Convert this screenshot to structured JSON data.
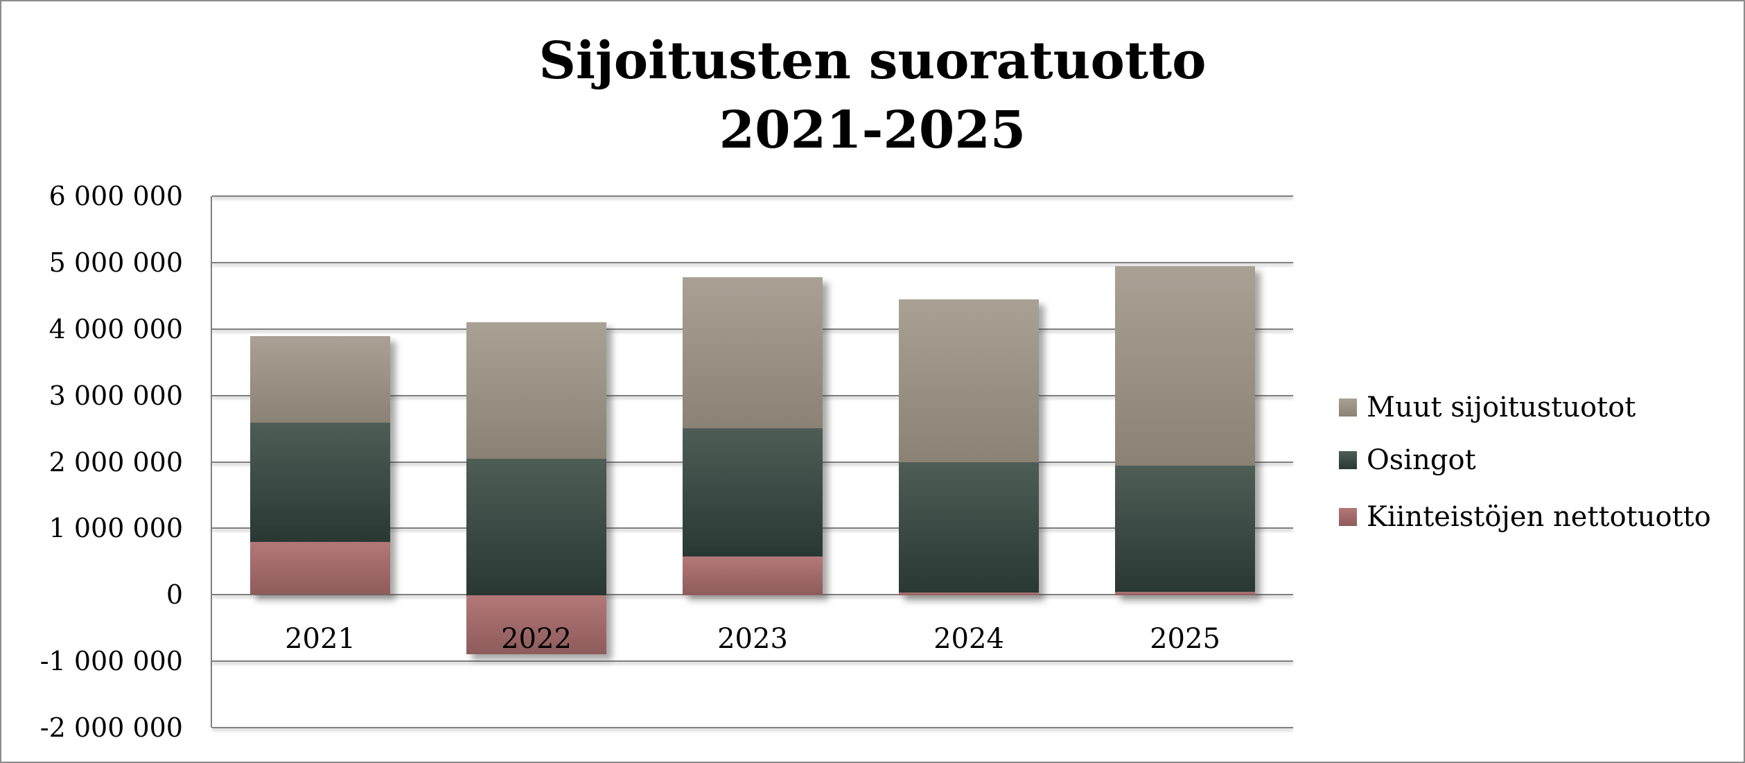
{
  "title": {
    "line1": "Sijoitusten suoratuotto",
    "line2": "2021-2025"
  },
  "y_axis": {
    "tick_labels": [
      "6 000 000",
      "5 000 000",
      "4 000 000",
      "3 000 000",
      "2 000 000",
      "1 000 000",
      "0",
      "-1 000 000",
      "-2 000 000"
    ]
  },
  "x_axis": {
    "labels": [
      "2021",
      "2022",
      "2023",
      "2024",
      "2025"
    ]
  },
  "legend": {
    "position": "right",
    "entries": [
      "Muut sijoitustuotot",
      "Osingot",
      "Kiinteistöjen nettotuotto"
    ]
  },
  "colors": {
    "gridline": "#7f7f7f",
    "frame_border": "#8c8c8c",
    "text": "#000000"
  },
  "chart_data": {
    "type": "bar",
    "stacked": true,
    "title": "Sijoitusten suoratuotto 2021-2025",
    "categories": [
      "2021",
      "2022",
      "2023",
      "2024",
      "2025"
    ],
    "series": [
      {
        "name": "Kiinteistöjen nettotuotto",
        "color_top": "#b47878",
        "color_bottom": "#8e5b5b",
        "values": [
          800000,
          -900000,
          580000,
          40000,
          50000
        ]
      },
      {
        "name": "Osingot",
        "color_top": "#4e5d56",
        "color_bottom": "#293833",
        "values": [
          1790000,
          2050000,
          1930000,
          1960000,
          1900000
        ]
      },
      {
        "name": "Muut sijoitustuotot",
        "color_top": "#a9a194",
        "color_bottom": "#8a8274",
        "values": [
          1300000,
          2050000,
          2270000,
          2450000,
          3000000
        ]
      }
    ],
    "legend_order": [
      "Muut sijoitustuotot",
      "Osingot",
      "Kiinteistöjen nettotuotto"
    ],
    "ylim": [
      -2000000,
      6000000
    ],
    "ytick_step": 1000000,
    "grid": true,
    "legend_position": "right"
  }
}
